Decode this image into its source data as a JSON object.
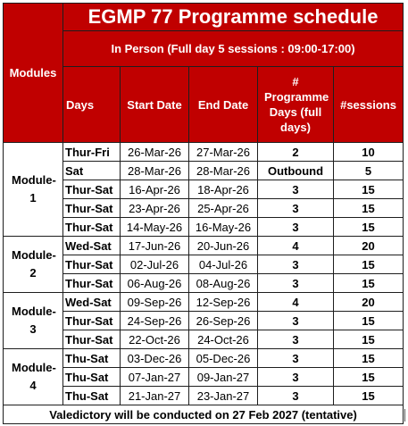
{
  "title": "EGMP 77 Programme schedule",
  "subtitle": "In Person (Full day 5 sessions : 09:00-17:00)",
  "headers": {
    "modules": "Modules",
    "days": "Days",
    "start_date": "Start Date",
    "end_date": "End Date",
    "programme_days": "# Programme Days (full days)",
    "sessions": "#sessions"
  },
  "modules": [
    {
      "label": "Module-1",
      "rows": [
        {
          "days": "Thur-Fri",
          "start": "26-Mar-26",
          "end": "27-Mar-26",
          "prog_days": "2",
          "sessions": "10"
        },
        {
          "days": "Sat",
          "start": "28-Mar-26",
          "end": "28-Mar-26",
          "prog_days": "Outbound",
          "sessions": "5"
        },
        {
          "days": "Thur-Sat",
          "start": "16-Apr-26",
          "end": "18-Apr-26",
          "prog_days": "3",
          "sessions": "15"
        },
        {
          "days": "Thur-Sat",
          "start": "23-Apr-26",
          "end": "25-Apr-26",
          "prog_days": "3",
          "sessions": "15"
        },
        {
          "days": "Thur-Sat",
          "start": "14-May-26",
          "end": "16-May-26",
          "prog_days": "3",
          "sessions": "15"
        }
      ]
    },
    {
      "label": "Module-2",
      "rows": [
        {
          "days": "Wed-Sat",
          "start": "17-Jun-26",
          "end": "20-Jun-26",
          "prog_days": "4",
          "sessions": "20"
        },
        {
          "days": "Thur-Sat",
          "start": "02-Jul-26",
          "end": "04-Jul-26",
          "prog_days": "3",
          "sessions": "15"
        },
        {
          "days": "Thur-Sat",
          "start": "06-Aug-26",
          "end": "08-Aug-26",
          "prog_days": "3",
          "sessions": "15"
        }
      ]
    },
    {
      "label": "Module-3",
      "rows": [
        {
          "days": "Wed-Sat",
          "start": "09-Sep-26",
          "end": "12-Sep-26",
          "prog_days": "4",
          "sessions": "20"
        },
        {
          "days": "Thur-Sat",
          "start": "24-Sep-26",
          "end": "26-Sep-26",
          "prog_days": "3",
          "sessions": "15"
        },
        {
          "days": "Thur-Sat",
          "start": "22-Oct-26",
          "end": "24-Oct-26",
          "prog_days": "3",
          "sessions": "15"
        }
      ]
    },
    {
      "label": "Module-4",
      "rows": [
        {
          "days": "Thu-Sat",
          "start": "03-Dec-26",
          "end": "05-Dec-26",
          "prog_days": "3",
          "sessions": "15"
        },
        {
          "days": "Thu-Sat",
          "start": "07-Jan-27",
          "end": "09-Jan-27",
          "prog_days": "3",
          "sessions": "15"
        },
        {
          "days": "Thu-Sat",
          "start": "21-Jan-27",
          "end": "23-Jan-27",
          "prog_days": "3",
          "sessions": "15"
        }
      ]
    }
  ],
  "footer": "Valedictory will be conducted on 27 Feb 2027 (tentative)"
}
